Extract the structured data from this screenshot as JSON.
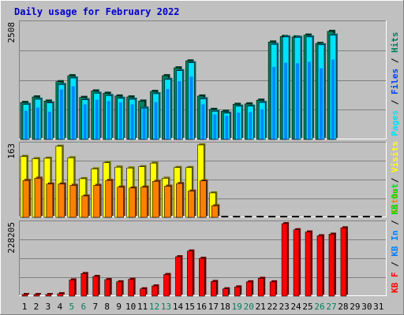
{
  "colors": {
    "background": "#c0c0c0",
    "plot_background": "#c0c0c0",
    "grid": "#808080",
    "title": "#0000cc",
    "hits": "#00805c",
    "files": "#0040ff",
    "pages": "#00e0ff",
    "visits": "#ffff00",
    "sites": "#ff8000",
    "kb_in": "#0080ff",
    "kb_out": "#00e000",
    "kb_f": "#ff0000",
    "weekend_day": "#00805c",
    "weekday": "#000000"
  },
  "chart_data": [
    {
      "type": "bar",
      "title": "Daily usage for February 2022",
      "ylabel_parts": [
        {
          "text": "Pages",
          "color_key": "pages"
        },
        {
          "text": " / ",
          "color_key": "weekday"
        },
        {
          "text": "Files",
          "color_key": "files"
        },
        {
          "text": " / ",
          "color_key": "weekday"
        },
        {
          "text": "Hits",
          "color_key": "hits"
        }
      ],
      "ymax_label": "2508",
      "ylim": [
        0,
        2508
      ],
      "grid": true,
      "categories": [
        "1",
        "2",
        "3",
        "4",
        "5",
        "6",
        "7",
        "8",
        "9",
        "10",
        "11",
        "12",
        "13",
        "14",
        "15",
        "16",
        "17",
        "18",
        "19",
        "20",
        "21",
        "22",
        "23",
        "24",
        "25",
        "26",
        "27",
        "28",
        "29",
        "30",
        "31"
      ],
      "series": [
        {
          "name": "Hits",
          "color_key": "hits",
          "values": [
            800,
            920,
            830,
            1250,
            1380,
            910,
            1050,
            1000,
            940,
            920,
            830,
            1040,
            1380,
            1550,
            1700,
            940,
            650,
            610,
            760,
            770,
            850,
            2110,
            2230,
            2220,
            2260,
            2080,
            2340,
            0,
            0,
            0,
            0
          ]
        },
        {
          "name": "Files",
          "color_key": "files",
          "values": [
            620,
            690,
            600,
            1080,
            1150,
            760,
            860,
            830,
            800,
            760,
            670,
            810,
            1090,
            1260,
            1360,
            760,
            540,
            510,
            580,
            590,
            650,
            1570,
            1660,
            1650,
            1680,
            1540,
            1730,
            0,
            0,
            0,
            0
          ]
        },
        {
          "name": "Pages",
          "color_key": "pages",
          "values": [
            760,
            870,
            790,
            1190,
            1330,
            860,
            1000,
            950,
            890,
            870,
            680,
            990,
            1300,
            1490,
            1660,
            880,
            610,
            570,
            720,
            720,
            800,
            2060,
            2220,
            2210,
            2220,
            2050,
            2260,
            0,
            0,
            0,
            0
          ]
        }
      ]
    },
    {
      "type": "bar",
      "ylabel_parts": [
        {
          "text": "Sites",
          "color_key": "sites"
        },
        {
          "text": " / ",
          "color_key": "weekday"
        },
        {
          "text": "Visits",
          "color_key": "visits"
        }
      ],
      "ymax_label": "163",
      "ylim": [
        0,
        163
      ],
      "grid": true,
      "categories": [
        "1",
        "2",
        "3",
        "4",
        "5",
        "6",
        "7",
        "8",
        "9",
        "10",
        "11",
        "12",
        "13",
        "14",
        "15",
        "16",
        "17",
        "18",
        "19",
        "20",
        "21",
        "22",
        "23",
        "24",
        "25",
        "26",
        "27",
        "28",
        "29",
        "30",
        "31"
      ],
      "series": [
        {
          "name": "Visits",
          "color_key": "visits",
          "values": [
            137,
            132,
            133,
            160,
            134,
            87,
            109,
            123,
            113,
            111,
            114,
            122,
            88,
            112,
            112,
            163,
            55,
            0,
            0,
            0,
            0,
            0,
            0,
            0,
            0,
            0,
            0,
            0,
            0,
            0,
            0
          ]
        },
        {
          "name": "Sites",
          "color_key": "sites",
          "values": [
            83,
            88,
            75,
            75,
            72,
            48,
            72,
            83,
            68,
            66,
            68,
            81,
            70,
            76,
            59,
            82,
            26,
            0,
            0,
            0,
            0,
            0,
            0,
            0,
            0,
            0,
            0,
            0,
            0,
            0,
            0
          ]
        }
      ]
    },
    {
      "type": "bar",
      "ylabel_parts": [
        {
          "text": "KB F",
          "color_key": "kb_f"
        },
        {
          "text": " / ",
          "color_key": "weekday"
        },
        {
          "text": "KB In",
          "color_key": "kb_in"
        },
        {
          "text": " / ",
          "color_key": "weekday"
        },
        {
          "text": "KB Out",
          "color_key": "kb_out"
        }
      ],
      "ymax_label": "228205",
      "ylim": [
        0,
        228205
      ],
      "grid": true,
      "categories": [
        "1",
        "2",
        "3",
        "4",
        "5",
        "6",
        "7",
        "8",
        "9",
        "10",
        "11",
        "12",
        "13",
        "14",
        "15",
        "16",
        "17",
        "18",
        "19",
        "20",
        "21",
        "22",
        "23",
        "24",
        "25",
        "26",
        "27",
        "28",
        "29",
        "30",
        "31"
      ],
      "series": [
        {
          "name": "KB F",
          "color_key": "kb_f",
          "values": [
            1200,
            1200,
            1200,
            7500,
            51000,
            71000,
            62000,
            52000,
            45000,
            53000,
            23000,
            32000,
            68000,
            124000,
            142000,
            119000,
            46000,
            23000,
            29000,
            45000,
            56000,
            45000,
            228205,
            209000,
            202000,
            190000,
            195000,
            215000,
            0,
            0,
            0
          ]
        }
      ]
    }
  ],
  "x_axis": {
    "days": [
      "1",
      "2",
      "3",
      "4",
      "5",
      "6",
      "7",
      "8",
      "9",
      "10",
      "11",
      "12",
      "13",
      "14",
      "15",
      "16",
      "17",
      "18",
      "19",
      "20",
      "21",
      "22",
      "23",
      "24",
      "25",
      "26",
      "27",
      "28",
      "29",
      "30",
      "31"
    ],
    "weekend_days": [
      "5",
      "6",
      "12",
      "13",
      "19",
      "20",
      "26",
      "27"
    ]
  }
}
